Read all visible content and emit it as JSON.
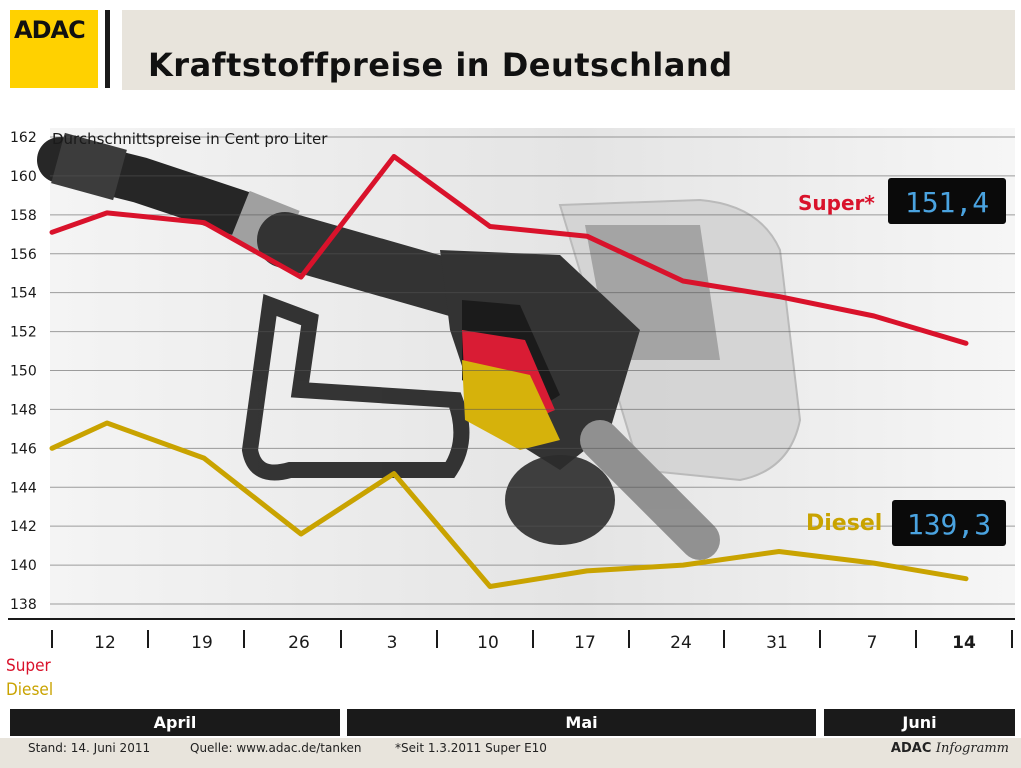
{
  "header": {
    "logo": "ADAC",
    "title": "Kraftstoffpreise in Deutschland"
  },
  "chart_data": {
    "type": "line",
    "subtitle": "Durchschnittspreise in Cent pro Liter",
    "y_ticks": [
      "162",
      "160",
      "158",
      "156",
      "154",
      "152",
      "150",
      "148",
      "146",
      "144",
      "142",
      "140",
      "138"
    ],
    "ylim": [
      137,
      162
    ],
    "grid": true,
    "categories": [
      "12",
      "19",
      "26",
      "3",
      "10",
      "17",
      "24",
      "31",
      "7",
      "14"
    ],
    "highlight_category": "14",
    "series": [
      {
        "name": "Super*",
        "color": "#d9122b",
        "values": [
          158.1,
          157.9,
          154.8,
          161.0,
          157.4,
          156.9,
          154.4,
          153.8,
          152.8,
          151.4
        ],
        "display_labels": [
          "158,1",
          "157,9",
          "154,8",
          "161,0",
          "157,4",
          "156,9",
          "154,4",
          "153,8",
          "152,8",
          "151,4"
        ],
        "path_values": [
          157.1,
          158.1,
          157.6,
          154.8,
          161.0,
          157.4,
          156.9,
          154.6,
          153.8,
          152.8,
          151.4
        ],
        "digital_display": "151,4"
      },
      {
        "name": "Diesel",
        "color": "#c9a300",
        "values": [
          147.3,
          145.5,
          141.6,
          144.7,
          138.9,
          139.7,
          140.0,
          140.7,
          140.1,
          139.3
        ],
        "display_labels": [
          "147,3",
          "145,5",
          "141,6",
          "144,7",
          "138,9",
          "139,7",
          "140,0",
          "140,7",
          "140,1",
          "139,3"
        ],
        "path_values": [
          146.0,
          147.3,
          145.5,
          141.6,
          144.7,
          138.9,
          139.7,
          140.0,
          140.7,
          140.1,
          139.3
        ],
        "digital_display": "139,3"
      }
    ],
    "row_labels": {
      "super": "Super",
      "diesel": "Diesel"
    },
    "months": [
      "April",
      "Mai",
      "Juni"
    ]
  },
  "footer": {
    "stand": "Stand:  14. Juni 2011",
    "quelle": "Quelle: www.adac.de/tanken",
    "seit": "*Seit 1.3.2011 Super E10",
    "brand": "ADAC",
    "brand_suffix": "Infogramm"
  }
}
